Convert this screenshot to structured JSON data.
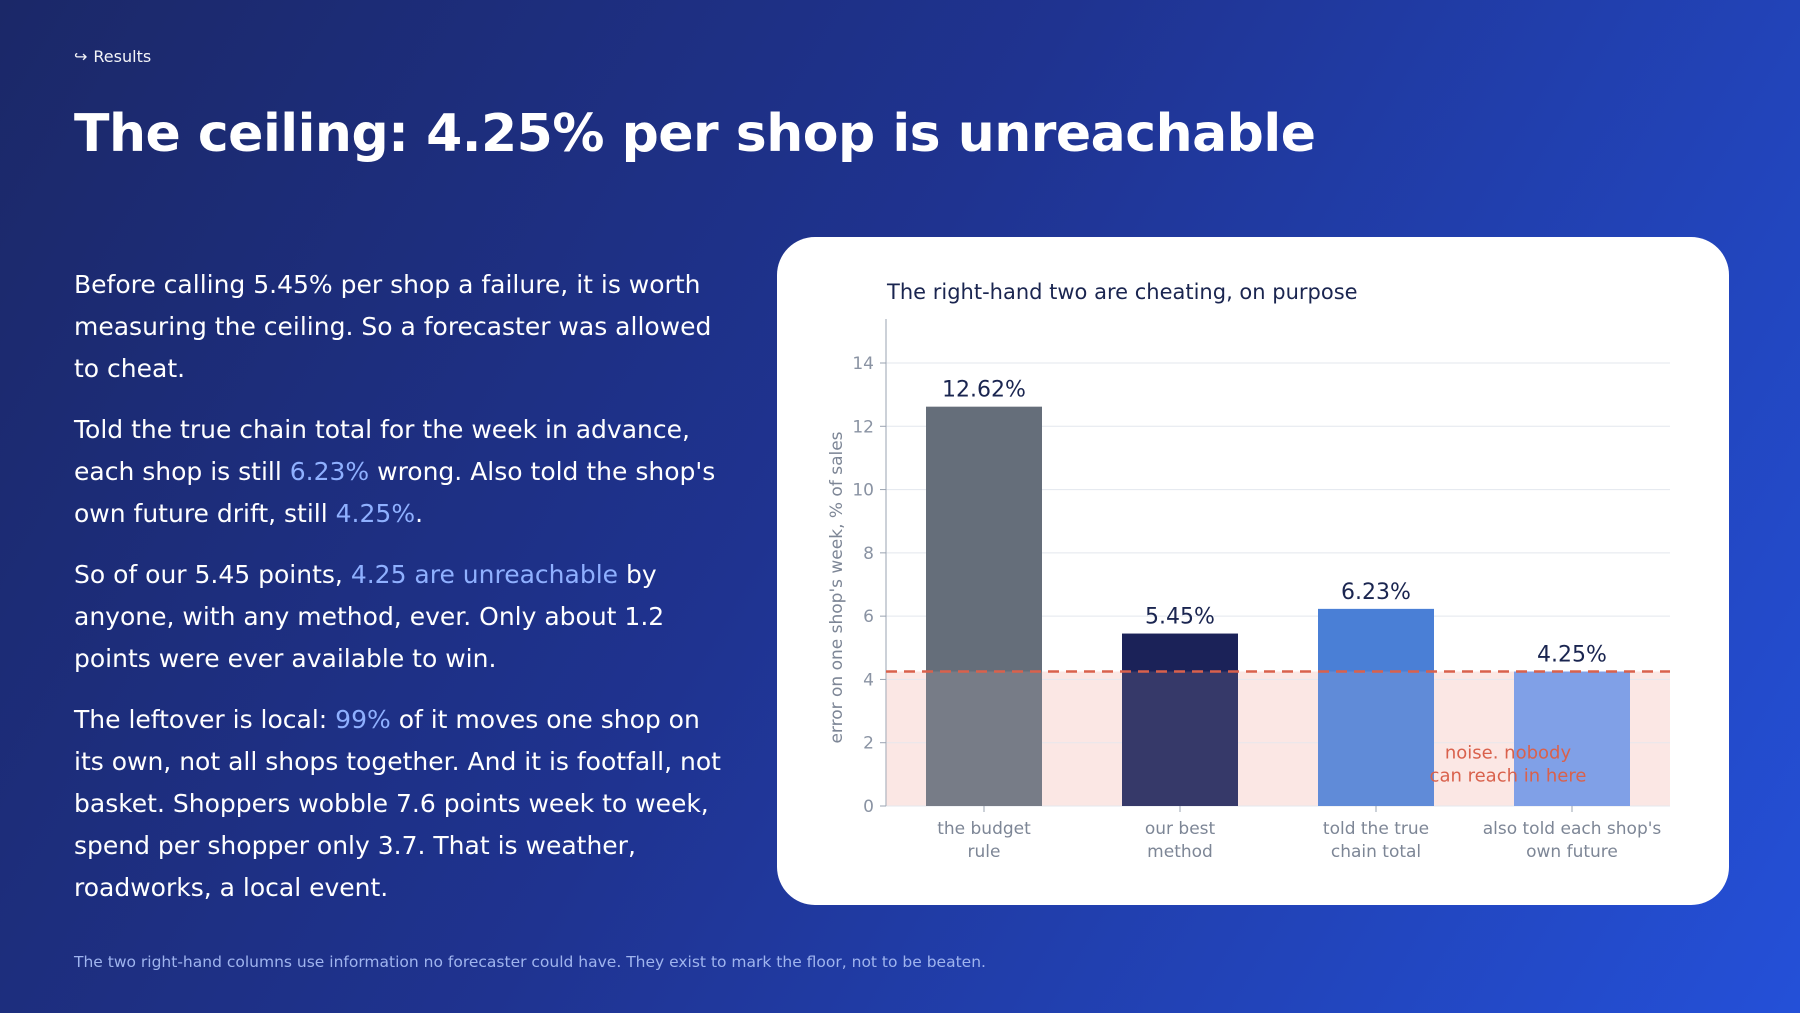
{
  "breadcrumb": {
    "arrow": "↪",
    "label": "Results"
  },
  "title": "The ceiling: 4.25% per shop is unreachable",
  "paragraphs": [
    {
      "segments": [
        {
          "text": "Before calling 5.45% per shop a failure, it is worth measuring the ceiling. So a forecaster was allowed to cheat.",
          "highlight": false
        }
      ]
    },
    {
      "segments": [
        {
          "text": "Told the true chain total for the week in advance, each shop is still ",
          "highlight": false
        },
        {
          "text": "6.23%",
          "highlight": true
        },
        {
          "text": " wrong. Also told the shop's own future drift, still ",
          "highlight": false
        },
        {
          "text": "4.25%",
          "highlight": true
        },
        {
          "text": ".",
          "highlight": false
        }
      ]
    },
    {
      "segments": [
        {
          "text": "So of our 5.45 points, ",
          "highlight": false
        },
        {
          "text": "4.25 are unreachable",
          "highlight": true
        },
        {
          "text": " by anyone, with any method, ever. Only about 1.2 points were ever available to win.",
          "highlight": false
        }
      ]
    },
    {
      "segments": [
        {
          "text": "The leftover is local: ",
          "highlight": false
        },
        {
          "text": "99%",
          "highlight": true
        },
        {
          "text": " of it moves one shop on its own, not all shops together. And it is footfall, not basket. Shoppers wobble 7.6 points week to week, spend per shopper only 3.7. That is weather, roadworks, a local event.",
          "highlight": false
        }
      ]
    }
  ],
  "footnote": "The two right-hand columns use information no forecaster could have. They exist to mark the floor, not to be beaten.",
  "chart_data": {
    "type": "bar",
    "title": "The right-hand two are cheating, on purpose",
    "ylabel": "error on one shop's week, % of sales",
    "xlabel": "",
    "ylim": [
      0,
      14
    ],
    "yticks": [
      0,
      2,
      4,
      6,
      8,
      10,
      12,
      14
    ],
    "grid": true,
    "categories": [
      [
        "the budget",
        "rule"
      ],
      [
        "our best",
        "method"
      ],
      [
        "told the true",
        "chain total"
      ],
      [
        "also told each shop's",
        "own future"
      ]
    ],
    "values": [
      12.62,
      5.45,
      6.23,
      4.25
    ],
    "value_labels": [
      "12.62%",
      "5.45%",
      "6.23%",
      "4.25%"
    ],
    "bar_colors": [
      "#656e7a",
      "#1b2258",
      "#4a7fd6",
      "#6f97e8"
    ],
    "reference_line": {
      "value": 4.25,
      "color": "#d9614c",
      "style": "dashed"
    },
    "shaded_region": {
      "from": 0,
      "to": 4.25,
      "color": "#fbe8e4"
    },
    "annotation": {
      "lines": [
        "noise. nobody",
        "can reach in here"
      ],
      "color": "#d9614c"
    }
  }
}
